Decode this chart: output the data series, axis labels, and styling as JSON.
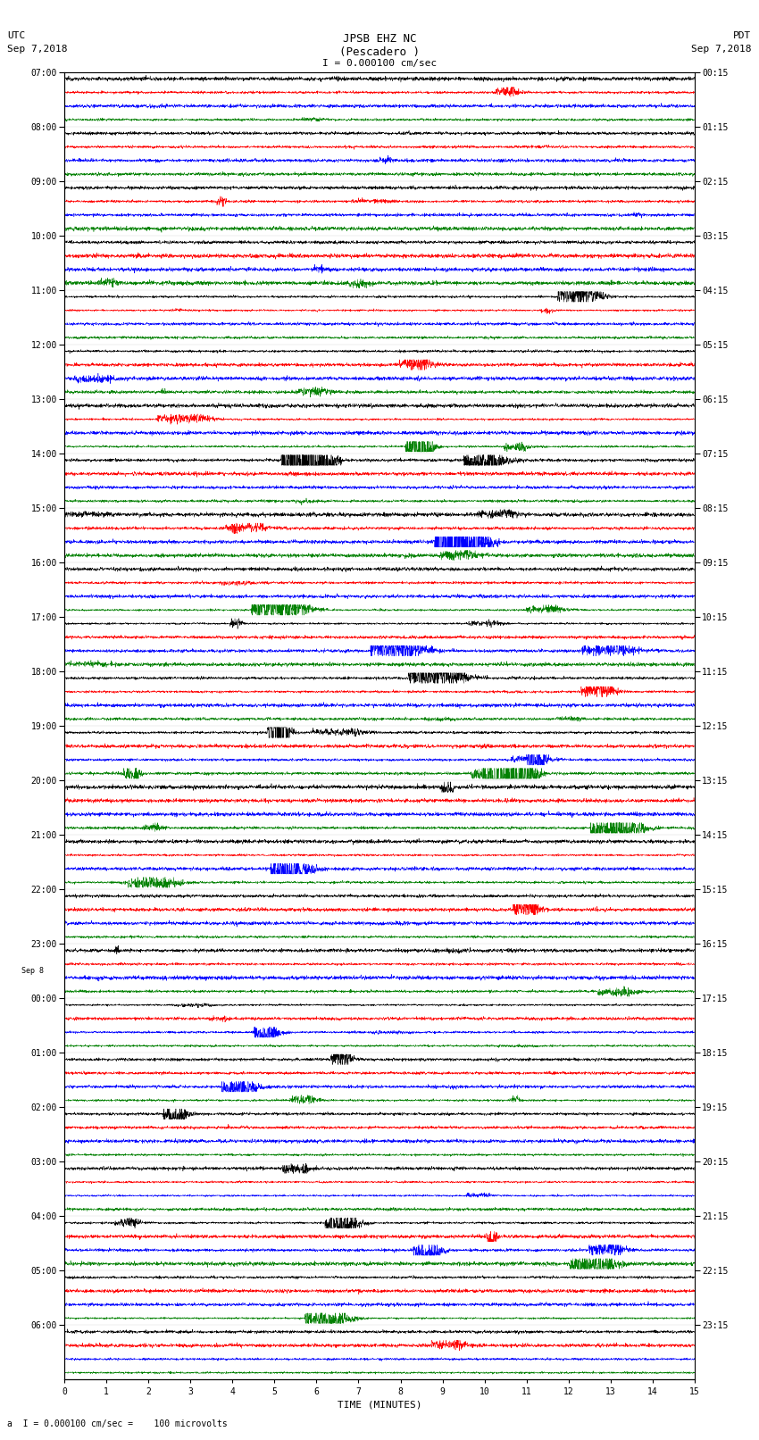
{
  "title_line1": "JPSB EHZ NC",
  "title_line2": "(Pescadero )",
  "scale_label": "I = 0.000100 cm/sec",
  "utc_label": "UTC",
  "utc_date": "Sep 7,2018",
  "pdt_label": "PDT",
  "pdt_date": "Sep 7,2018",
  "bottom_label": "a  I = 0.000100 cm/sec =    100 microvolts",
  "xlabel": "TIME (MINUTES)",
  "left_times": [
    "07:00",
    "08:00",
    "09:00",
    "10:00",
    "11:00",
    "12:00",
    "13:00",
    "14:00",
    "15:00",
    "16:00",
    "17:00",
    "18:00",
    "19:00",
    "20:00",
    "21:00",
    "22:00",
    "23:00",
    "00:00",
    "01:00",
    "02:00",
    "03:00",
    "04:00",
    "05:00",
    "06:00"
  ],
  "left_time_extra": "Sep 8",
  "right_times": [
    "00:15",
    "01:15",
    "02:15",
    "03:15",
    "04:15",
    "05:15",
    "06:15",
    "07:15",
    "08:15",
    "09:15",
    "10:15",
    "11:15",
    "12:15",
    "13:15",
    "14:15",
    "15:15",
    "16:15",
    "17:15",
    "18:15",
    "19:15",
    "20:15",
    "21:15",
    "22:15",
    "23:15"
  ],
  "colors_hex": [
    "#000000",
    "#ff0000",
    "#0000ff",
    "#008000"
  ],
  "n_rows": 24,
  "traces_per_row": 4,
  "minutes": 15,
  "bg_color": "#ffffff",
  "amplitude_scale": 0.38,
  "noise_base": 0.05,
  "seed": 12345,
  "linewidth": 0.35
}
